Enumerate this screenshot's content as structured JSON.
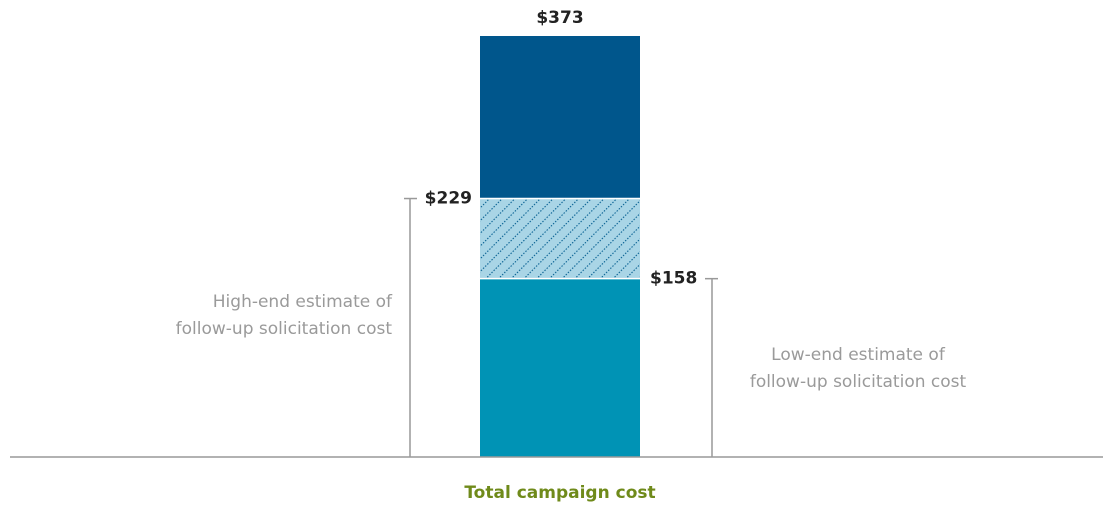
{
  "chart_data": {
    "type": "bar",
    "x_label": "Total campaign cost",
    "values": [
      373,
      229,
      158
    ],
    "value_labels": [
      "$373",
      "$229",
      "$158"
    ],
    "colors": [
      "#00568c",
      "#a9d5e6",
      "#0093b5"
    ],
    "patterns": [
      null,
      "hatch",
      null
    ],
    "ylim": [
      0,
      373
    ],
    "annotations": [
      {
        "text": [
          "High-end estimate of",
          "follow-up solicitation cost"
        ]
      },
      {
        "text": [
          "Low-end estimate of",
          "follow-up solicitation cost"
        ]
      }
    ]
  }
}
